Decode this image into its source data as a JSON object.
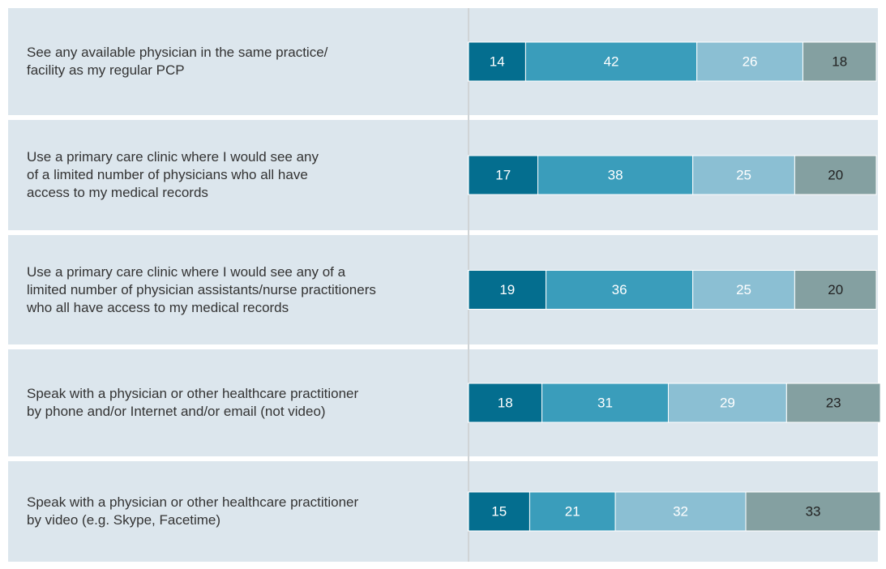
{
  "chart_data": {
    "type": "stacked-bar-horizontal",
    "categories": [
      "See any available physician in the same practice/\nfacility as my regular PCP",
      "Use a primary care clinic where I would see any\nof a limited number of physicians who all have\naccess to my medical records",
      "Use a primary care clinic where I would see any of a\nlimited number of physician assistants/nurse practitioners\nwho all have access to my medical records",
      "Speak with a physician or other healthcare practitioner\nby phone and/or Internet and/or email (not video)",
      "Speak with a physician or other healthcare practitioner\nby video (e.g. Skype, Facetime)"
    ],
    "series": [
      {
        "color": "#046e8f",
        "values": [
          14,
          17,
          19,
          18,
          15
        ]
      },
      {
        "color": "#3a9dbb",
        "values": [
          42,
          38,
          36,
          31,
          21
        ]
      },
      {
        "color": "#8bbfd3",
        "values": [
          26,
          25,
          25,
          29,
          32
        ]
      },
      {
        "color": "#84a0a1",
        "values": [
          18,
          20,
          20,
          23,
          33
        ]
      }
    ]
  }
}
